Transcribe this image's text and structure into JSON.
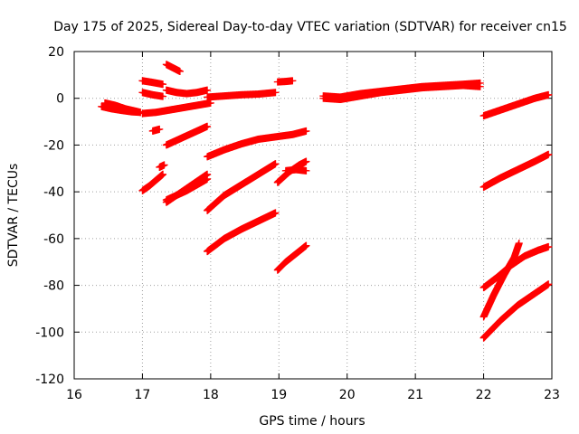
{
  "chart_data": {
    "type": "scatter",
    "title": "Day 175 of 2025, Sidereal Day-to-day VTEC variation (SDTVAR) for receiver cn15",
    "xlabel": "GPS time / hours",
    "ylabel": "SDTVAR / TECUs",
    "xlim": [
      16,
      23
    ],
    "ylim": [
      -120,
      20
    ],
    "x_ticks": [
      16,
      17,
      18,
      19,
      20,
      21,
      22,
      23
    ],
    "y_ticks": [
      -120,
      -100,
      -80,
      -60,
      -40,
      -20,
      0,
      20
    ],
    "grid": true,
    "marker": "+",
    "color": "#ff0000",
    "series": [
      {
        "name": "arc-01",
        "x": [
          16.4,
          16.55,
          16.7,
          16.85,
          16.97
        ],
        "y": [
          -3.5,
          -4.5,
          -5.2,
          -5.8,
          -6.0
        ]
      },
      {
        "name": "arc-02",
        "x": [
          16.45,
          16.6,
          16.75,
          16.9,
          16.97
        ],
        "y": [
          -2.0,
          -3.0,
          -4.5,
          -5.5,
          -6.0
        ]
      },
      {
        "name": "arc-03",
        "x": [
          17.0,
          17.2,
          17.4,
          17.6,
          17.8,
          18.0
        ],
        "y": [
          -6.5,
          -6.0,
          -5.0,
          -4.0,
          -3.0,
          -2.0
        ]
      },
      {
        "name": "arc-04",
        "x": [
          17.0,
          17.15,
          17.3
        ],
        "y": [
          7.5,
          6.8,
          6.0
        ]
      },
      {
        "name": "arc-05",
        "x": [
          17.0,
          17.15,
          17.3
        ],
        "y": [
          2.5,
          1.5,
          0.8
        ]
      },
      {
        "name": "arc-06",
        "x": [
          17.15,
          17.25
        ],
        "y": [
          -14.0,
          -13.2
        ]
      },
      {
        "name": "arc-07",
        "x": [
          17.25,
          17.32
        ],
        "y": [
          -29.5,
          -28.5
        ]
      },
      {
        "name": "arc-08",
        "x": [
          17.35,
          17.45,
          17.55
        ],
        "y": [
          14.5,
          13.0,
          11.5
        ]
      },
      {
        "name": "arc-09",
        "x": [
          17.35,
          17.5,
          17.65,
          17.8,
          17.95
        ],
        "y": [
          3.5,
          2.5,
          2.0,
          2.5,
          3.5
        ]
      },
      {
        "name": "arc-10",
        "x": [
          17.35,
          17.5,
          17.65,
          17.8,
          17.95
        ],
        "y": [
          -20.0,
          -18.0,
          -16.0,
          -14.0,
          -12.0
        ]
      },
      {
        "name": "arc-11",
        "x": [
          17.0,
          17.1,
          17.2,
          17.3
        ],
        "y": [
          -39.5,
          -37.5,
          -35.0,
          -32.5
        ]
      },
      {
        "name": "arc-12",
        "x": [
          17.35,
          17.5,
          17.65,
          17.8,
          17.95
        ],
        "y": [
          -44.5,
          -41.5,
          -38.5,
          -35.5,
          -32.5
        ]
      },
      {
        "name": "arc-13",
        "x": [
          17.35,
          17.5,
          17.65,
          17.8,
          17.95
        ],
        "y": [
          -43.5,
          -41.5,
          -39.5,
          -37.0,
          -34.5
        ]
      },
      {
        "name": "arc-14",
        "x": [
          17.95,
          18.2,
          18.45,
          18.7,
          18.95
        ],
        "y": [
          0.5,
          1.0,
          1.5,
          1.8,
          2.5
        ]
      },
      {
        "name": "arc-15",
        "x": [
          17.95,
          18.2,
          18.45,
          18.7,
          18.95,
          19.2,
          19.4
        ],
        "y": [
          -25.0,
          -22.0,
          -19.5,
          -17.5,
          -16.5,
          -15.5,
          -14.0
        ]
      },
      {
        "name": "arc-16",
        "x": [
          17.95,
          18.2,
          18.45,
          18.7,
          18.95
        ],
        "y": [
          -48.0,
          -41.5,
          -37.0,
          -32.5,
          -28.0
        ]
      },
      {
        "name": "arc-17",
        "x": [
          17.95,
          18.2,
          18.45,
          18.7,
          18.95
        ],
        "y": [
          -65.5,
          -60.0,
          -56.0,
          -52.5,
          -49.0
        ]
      },
      {
        "name": "arc-18",
        "x": [
          18.98,
          19.1,
          19.2
        ],
        "y": [
          7.0,
          7.2,
          7.5
        ]
      },
      {
        "name": "arc-19",
        "x": [
          18.98,
          19.15,
          19.3,
          19.4
        ],
        "y": [
          -36.0,
          -31.5,
          -28.5,
          -27.0
        ]
      },
      {
        "name": "arc-20",
        "x": [
          19.1,
          19.25,
          19.4
        ],
        "y": [
          -31.0,
          -30.5,
          -31.0
        ]
      },
      {
        "name": "arc-21",
        "x": [
          18.98,
          19.1,
          19.25,
          19.4
        ],
        "y": [
          -73.5,
          -70.0,
          -66.5,
          -63.0
        ]
      },
      {
        "name": "arc-22",
        "x": [
          19.65,
          19.9,
          20.2,
          20.5,
          20.8,
          21.1,
          21.4,
          21.7,
          21.95
        ],
        "y": [
          1.0,
          0.5,
          2.0,
          3.0,
          4.0,
          5.0,
          5.5,
          6.0,
          6.5
        ]
      },
      {
        "name": "arc-23",
        "x": [
          19.65,
          19.9,
          20.2,
          20.5,
          20.8,
          21.1,
          21.4,
          21.7,
          21.95
        ],
        "y": [
          0.0,
          -0.5,
          1.0,
          2.5,
          3.5,
          4.5,
          5.0,
          5.5,
          5.0
        ]
      },
      {
        "name": "arc-24",
        "x": [
          22.0,
          22.25,
          22.5,
          22.75,
          22.95
        ],
        "y": [
          -7.5,
          -5.0,
          -2.5,
          0.0,
          1.5
        ]
      },
      {
        "name": "arc-25",
        "x": [
          22.0,
          22.25,
          22.5,
          22.75,
          22.95
        ],
        "y": [
          -38.0,
          -34.0,
          -30.5,
          -27.0,
          -24.0
        ]
      },
      {
        "name": "arc-26",
        "x": [
          22.0,
          22.2,
          22.4,
          22.6,
          22.8,
          22.95
        ],
        "y": [
          -81.0,
          -76.5,
          -71.5,
          -67.5,
          -65.0,
          -63.5
        ]
      },
      {
        "name": "arc-27",
        "x": [
          22.0,
          22.15,
          22.3,
          22.45,
          22.52
        ],
        "y": [
          -93.5,
          -84.0,
          -75.5,
          -68.0,
          -62.0
        ]
      },
      {
        "name": "arc-28",
        "x": [
          22.0,
          22.25,
          22.5,
          22.75,
          22.95
        ],
        "y": [
          -102.5,
          -95.0,
          -88.5,
          -83.5,
          -79.5
        ]
      }
    ]
  }
}
